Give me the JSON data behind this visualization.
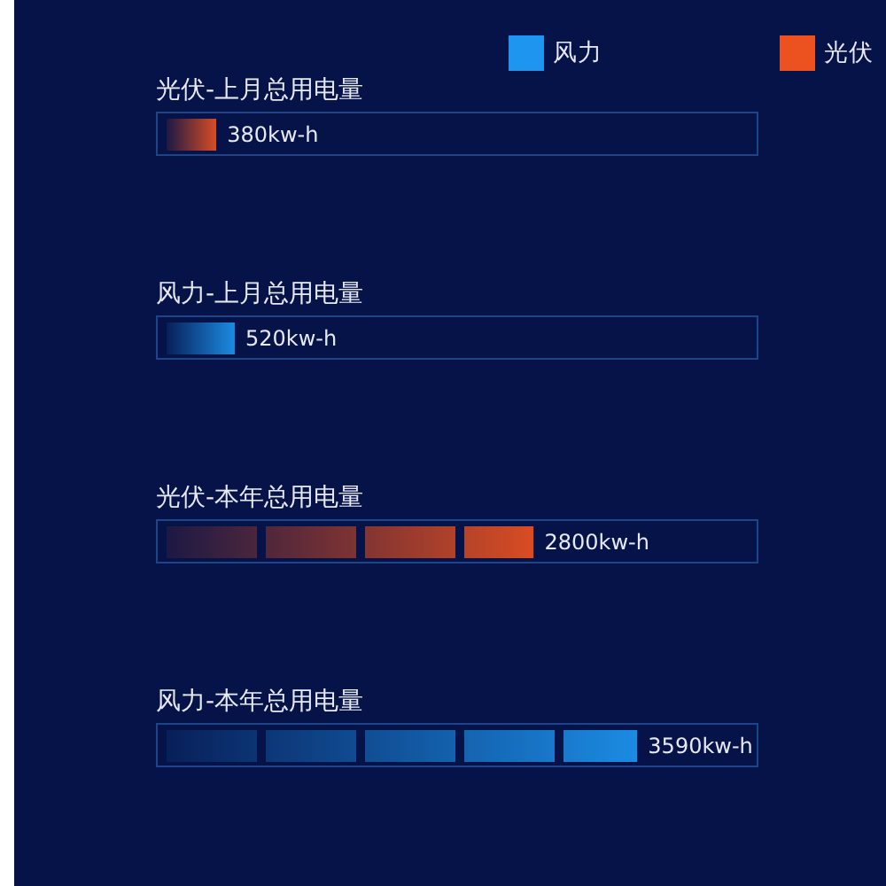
{
  "chart_data": {
    "type": "bar",
    "orientation": "horizontal",
    "stacked": true,
    "categories": [
      "光伏-上月总用电量",
      "风力-上月总用电量",
      "光伏-本年总用电量",
      "风力-本年总用电量"
    ],
    "series": [
      {
        "name": "风力",
        "color": "#1e96f0",
        "values": [
          null,
          520,
          null,
          3590
        ],
        "value_labels": [
          null,
          "520kw-h",
          null,
          "3590kw-h"
        ]
      },
      {
        "name": "光伏",
        "color": "#ec5220",
        "values": [
          380,
          null,
          2800,
          null
        ],
        "value_labels": [
          "380kw-h",
          null,
          "2800kw-h",
          null
        ]
      }
    ],
    "legend": "top right"
  }
}
